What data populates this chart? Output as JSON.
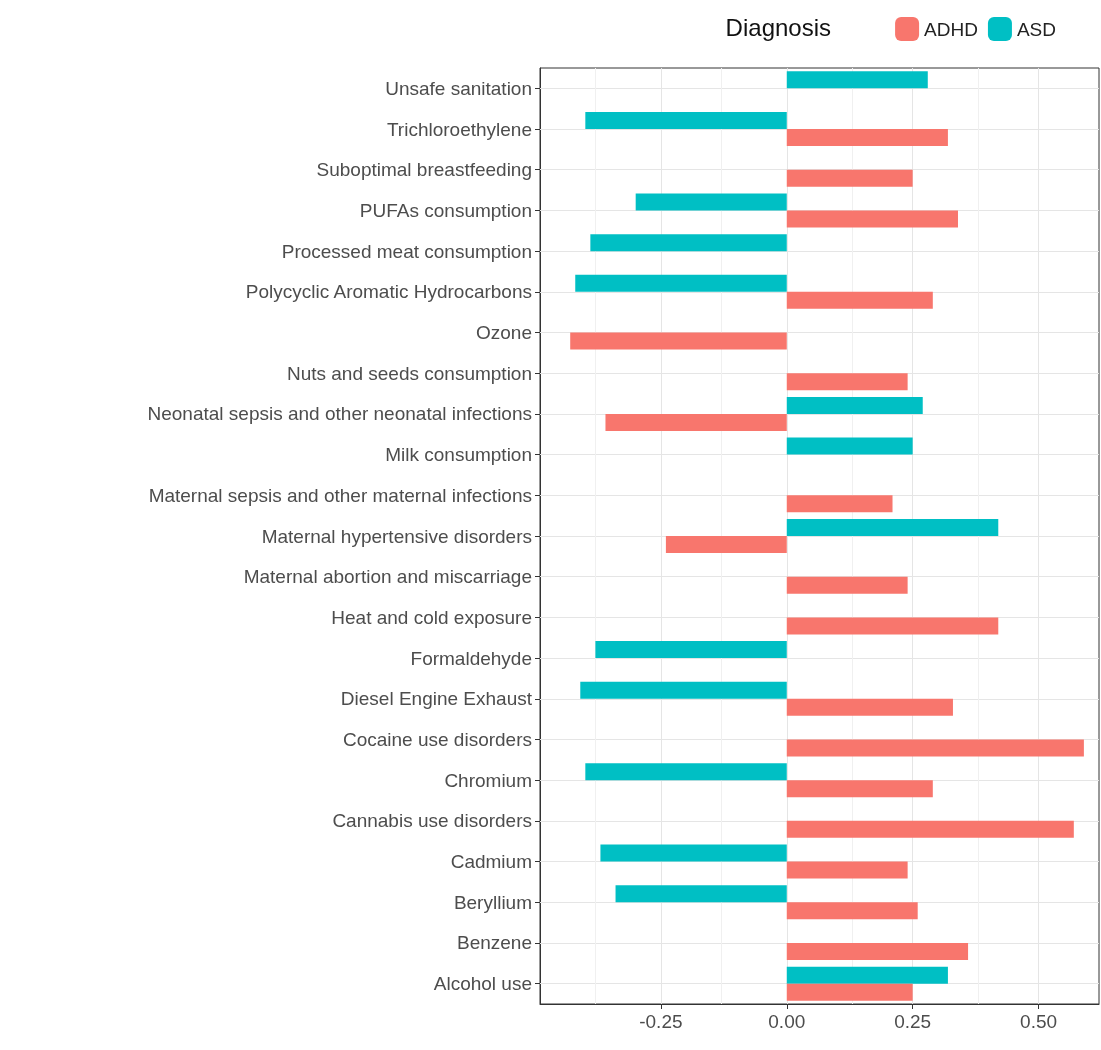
{
  "chart_data": {
    "type": "bar",
    "orientation": "horizontal",
    "legend_title": "Diagnosis",
    "legend": "top right",
    "grid": true,
    "categories": [
      "Unsafe sanitation",
      "Trichloroethylene",
      "Suboptimal breastfeeding",
      "PUFAs consumption",
      "Processed meat consumption",
      "Polycyclic Aromatic Hydrocarbons",
      "Ozone",
      "Nuts and seeds consumption",
      "Neonatal sepsis and other neonatal infections",
      "Milk consumption",
      "Maternal sepsis and other maternal infections",
      "Maternal hypertensive disorders",
      "Maternal abortion and miscarriage",
      "Heat and cold exposure",
      "Formaldehyde",
      "Diesel Engine Exhaust",
      "Cocaine use disorders",
      "Chromium",
      "Cannabis use disorders",
      "Cadmium",
      "Beryllium",
      "Benzene",
      "Alcohol use"
    ],
    "series": [
      {
        "name": "ADHD",
        "color": "#f8766d",
        "values": [
          null,
          0.32,
          0.25,
          0.34,
          null,
          0.29,
          -0.43,
          0.24,
          -0.36,
          null,
          0.21,
          -0.24,
          0.24,
          0.42,
          null,
          0.33,
          0.59,
          0.29,
          0.57,
          0.24,
          0.26,
          0.36,
          0.25
        ]
      },
      {
        "name": "ASD",
        "color": "#00bfc4",
        "values": [
          0.28,
          -0.4,
          null,
          -0.3,
          -0.39,
          -0.42,
          null,
          null,
          0.27,
          0.25,
          null,
          0.42,
          null,
          null,
          -0.38,
          -0.41,
          null,
          -0.4,
          null,
          -0.37,
          -0.34,
          null,
          0.32
        ]
      }
    ],
    "xlim": [
      -0.49,
      0.62
    ],
    "xticks": [
      -0.25,
      {
        "value": 0,
        "label": "0.00"
      },
      0.25,
      {
        "value": 0.5,
        "label": "0.50"
      }
    ]
  }
}
